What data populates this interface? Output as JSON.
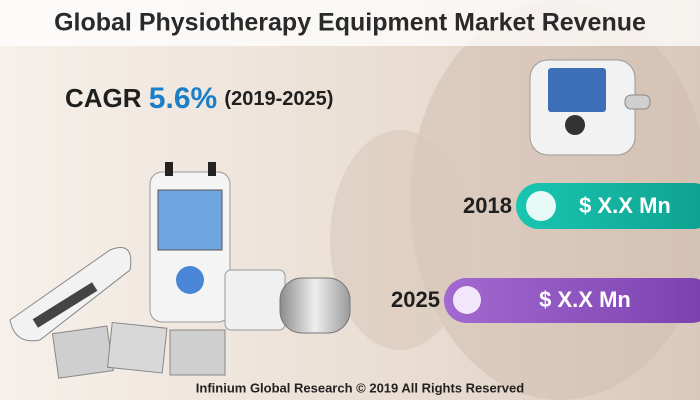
{
  "header": {
    "title": "Global Physiotherapy Equipment Market Revenue"
  },
  "cagr": {
    "label": "CAGR",
    "value": "5.6%",
    "period": "(2019-2025)"
  },
  "items": [
    {
      "year": "2018",
      "value": "$ X.X Mn"
    },
    {
      "year": "2025",
      "value": "$ X.X Mn"
    }
  ],
  "footer": "Infinium Global Research © 2019 All Rights Reserved"
}
